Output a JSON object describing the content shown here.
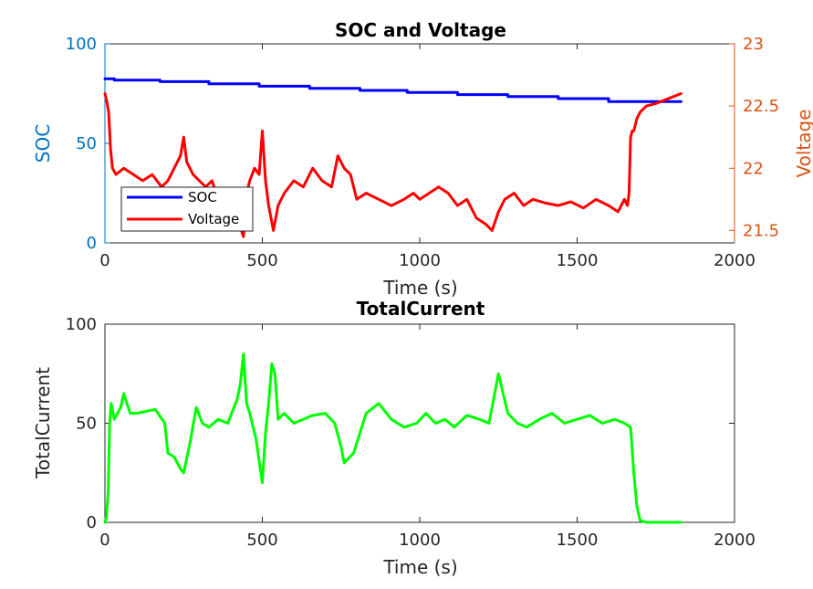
{
  "colors": {
    "soc": "#0000ff",
    "voltage": "#ff0000",
    "current": "#00ff00",
    "left_axis_top": "#0072bd",
    "right_axis_top": "#d95319",
    "axis_black": "#262626"
  },
  "chart_data": [
    {
      "type": "line",
      "title": "SOC and Voltage",
      "xlabel": "Time (s)",
      "ylabel": "SOC",
      "ylabel_right": "Voltage",
      "xlim": [
        0,
        2000
      ],
      "ylim": [
        0,
        100
      ],
      "ylim_right": [
        21.4,
        23
      ],
      "x_ticks": [
        "0",
        "500",
        "1000",
        "1500",
        "2000"
      ],
      "y_ticks": [
        "0",
        "50",
        "100"
      ],
      "y_ticks_right": [
        "21.5",
        "22",
        "22.5",
        "23"
      ],
      "legend_position": "bottom-left",
      "legend": [
        "SOC",
        "Voltage"
      ],
      "series": [
        {
          "name": "SOC",
          "axis": "left",
          "x": [
            0,
            30,
            30,
            175,
            175,
            330,
            330,
            490,
            490,
            650,
            650,
            810,
            810,
            960,
            960,
            1120,
            1120,
            1280,
            1280,
            1440,
            1440,
            1600,
            1600,
            1830
          ],
          "values": [
            82.5,
            82.5,
            81.8,
            81.8,
            81,
            81,
            79.9,
            79.9,
            78.7,
            78.7,
            77.6,
            77.6,
            76.6,
            76.6,
            75.6,
            75.6,
            74.5,
            74.5,
            73.5,
            73.5,
            72.5,
            72.5,
            71,
            71
          ]
        },
        {
          "name": "Voltage",
          "axis": "right",
          "x": [
            0,
            5,
            12,
            18,
            24,
            35,
            60,
            90,
            120,
            150,
            180,
            200,
            220,
            240,
            250,
            260,
            280,
            300,
            320,
            340,
            360,
            380,
            400,
            420,
            440,
            450,
            460,
            475,
            490,
            500,
            510,
            520,
            535,
            550,
            570,
            600,
            630,
            660,
            690,
            720,
            740,
            760,
            780,
            800,
            830,
            870,
            910,
            950,
            980,
            1000,
            1030,
            1060,
            1090,
            1120,
            1150,
            1180,
            1210,
            1230,
            1250,
            1270,
            1300,
            1330,
            1360,
            1400,
            1440,
            1480,
            1520,
            1560,
            1600,
            1630,
            1650,
            1660,
            1665,
            1670,
            1675,
            1680,
            1690,
            1700,
            1720,
            1750,
            1780,
            1810,
            1830
          ],
          "values": [
            22.6,
            22.55,
            22.45,
            22.15,
            22.0,
            21.95,
            22.0,
            21.95,
            21.9,
            21.95,
            21.85,
            21.9,
            22.0,
            22.1,
            22.25,
            22.05,
            21.95,
            21.9,
            21.85,
            21.9,
            21.75,
            21.8,
            21.75,
            21.6,
            21.45,
            21.8,
            21.9,
            22.0,
            21.95,
            22.3,
            21.9,
            21.7,
            21.5,
            21.7,
            21.8,
            21.9,
            21.85,
            22.0,
            21.9,
            21.85,
            22.1,
            22.0,
            21.95,
            21.75,
            21.8,
            21.75,
            21.7,
            21.75,
            21.8,
            21.75,
            21.8,
            21.85,
            21.8,
            21.7,
            21.75,
            21.6,
            21.55,
            21.5,
            21.65,
            21.75,
            21.8,
            21.7,
            21.75,
            21.72,
            21.7,
            21.73,
            21.68,
            21.75,
            21.7,
            21.65,
            21.75,
            21.7,
            21.8,
            22.25,
            22.3,
            22.3,
            22.4,
            22.45,
            22.5,
            22.52,
            22.55,
            22.58,
            22.6
          ]
        }
      ]
    },
    {
      "type": "line",
      "title": "TotalCurrent",
      "xlabel": "Time (s)",
      "ylabel": "TotalCurrent",
      "xlim": [
        0,
        2000
      ],
      "ylim": [
        0,
        100
      ],
      "x_ticks": [
        "0",
        "500",
        "1000",
        "1500",
        "2000"
      ],
      "y_ticks": [
        "0",
        "50",
        "100"
      ],
      "series": [
        {
          "name": "TotalCurrent",
          "x": [
            0,
            5,
            10,
            15,
            20,
            30,
            50,
            60,
            80,
            100,
            130,
            160,
            190,
            200,
            220,
            240,
            250,
            270,
            290,
            310,
            330,
            360,
            390,
            410,
            420,
            430,
            440,
            450,
            460,
            480,
            500,
            510,
            520,
            530,
            540,
            550,
            570,
            600,
            630,
            660,
            700,
            730,
            750,
            760,
            790,
            830,
            870,
            910,
            950,
            990,
            1020,
            1050,
            1080,
            1110,
            1150,
            1190,
            1220,
            1250,
            1280,
            1310,
            1340,
            1380,
            1420,
            1460,
            1500,
            1540,
            1580,
            1620,
            1650,
            1670,
            1680,
            1690,
            1700,
            1720,
            1760,
            1800,
            1830
          ],
          "values": [
            0,
            3,
            15,
            50,
            60,
            52,
            58,
            65,
            55,
            55,
            56,
            57,
            50,
            35,
            33,
            27,
            25,
            40,
            58,
            50,
            48,
            52,
            50,
            58,
            62,
            70,
            85,
            60,
            55,
            42,
            20,
            45,
            60,
            80,
            75,
            52,
            55,
            50,
            52,
            54,
            55,
            50,
            38,
            30,
            35,
            55,
            60,
            52,
            48,
            50,
            55,
            50,
            52,
            48,
            54,
            52,
            50,
            75,
            55,
            50,
            48,
            52,
            55,
            50,
            52,
            54,
            50,
            52,
            50,
            48,
            25,
            8,
            1,
            0,
            0,
            0,
            0
          ]
        }
      ]
    }
  ]
}
